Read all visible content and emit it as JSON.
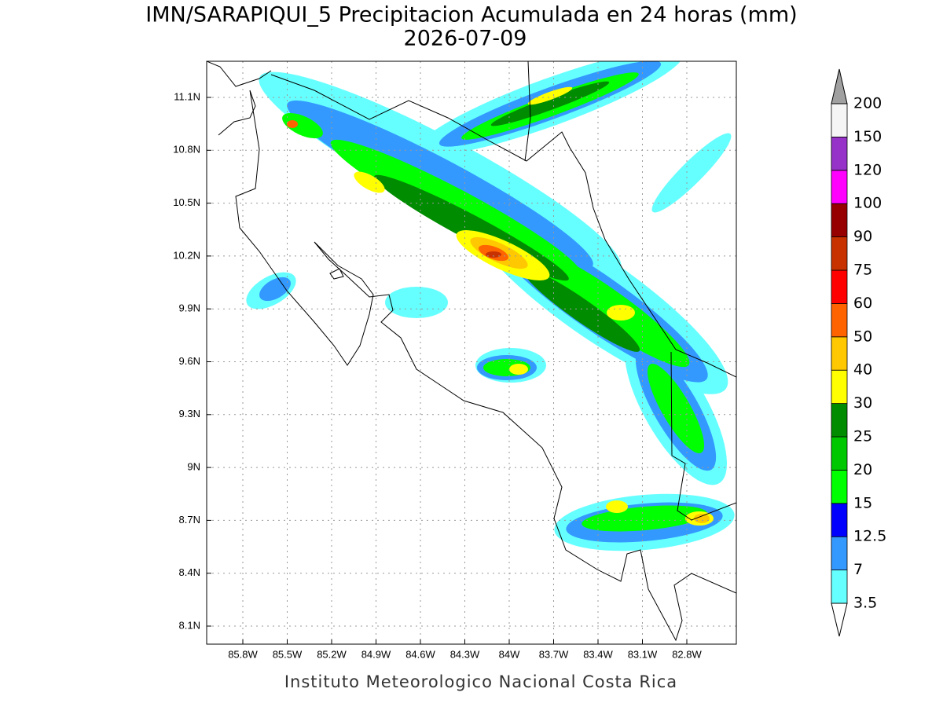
{
  "title": "IMN/SARAPIQUI_5 Precipitacion Acumulada en 24 horas (mm)",
  "subtitle": "2026-07-09",
  "map": {
    "lon_labels": [
      "85.8W",
      "85.5W",
      "85.2W",
      "84.9W",
      "84.6W",
      "84.3W",
      "84W",
      "83.7W",
      "83.4W",
      "83.1W",
      "82.8W"
    ],
    "lat_labels": [
      "11.1N",
      "10.8N",
      "10.5N",
      "10.2N",
      "9.9N",
      "9.6N",
      "9.3N",
      "9N",
      "8.7N",
      "8.4N",
      "8.1N"
    ]
  },
  "colorbar": {
    "labels": [
      "3.5",
      "7",
      "12.5",
      "15",
      "20",
      "25",
      "30",
      "40",
      "50",
      "60",
      "75",
      "90",
      "100",
      "120",
      "150",
      "200"
    ],
    "colors": [
      "#66ffff",
      "#3399ff",
      "#0000ff",
      "#00ff00",
      "#00c800",
      "#008c00",
      "#ffff00",
      "#ffc800",
      "#ff6400",
      "#ff0000",
      "#c83200",
      "#960000",
      "#ff00ff",
      "#9632c8",
      "#f5f5f5"
    ],
    "over_color": "#a0a0a0",
    "under_color": "#ffffff"
  },
  "footer": "Instituto Meteorologico Nacional Costa Rica"
}
